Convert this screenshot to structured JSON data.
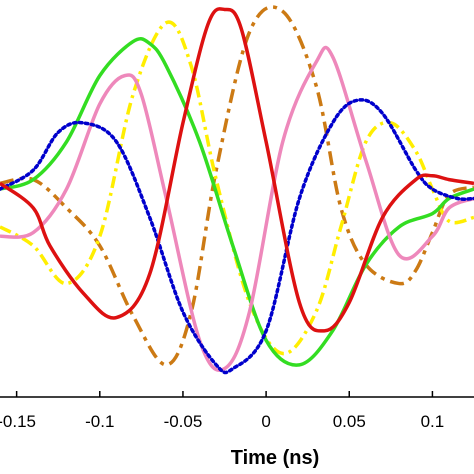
{
  "chart_data": {
    "type": "line",
    "title": "",
    "xlabel": "Time (ns)",
    "ylabel": "",
    "xlim": [
      -0.16,
      0.125
    ],
    "ylim": [
      -1.05,
      1.05
    ],
    "x_ticks": [
      -0.15,
      -0.1,
      -0.05,
      0,
      0.05,
      0.1
    ],
    "x_tick_labels": [
      "-0.15",
      "-0.1",
      "-0.05",
      "0",
      "0.05",
      "0.1"
    ],
    "grid": false,
    "legend": "none",
    "series": [
      {
        "style": "dashed",
        "color": "#cc7a14",
        "x": [
          -0.16,
          -0.14,
          -0.12,
          -0.1,
          -0.08,
          -0.06,
          -0.045,
          -0.03,
          -0.01,
          0.01,
          0.03,
          0.045,
          0.06,
          0.08,
          0.09,
          0.1,
          0.11,
          0.125
        ],
        "y": [
          0.08,
          0.1,
          -0.05,
          -0.25,
          -0.62,
          -0.88,
          -0.6,
          0.15,
          0.88,
          0.99,
          0.6,
          -0.05,
          -0.35,
          -0.45,
          -0.38,
          -0.18,
          0.02,
          0.06
        ]
      },
      {
        "style": "dashdot",
        "color": "#ffee00",
        "x": [
          -0.16,
          -0.14,
          -0.12,
          -0.1,
          -0.08,
          -0.06,
          -0.045,
          -0.03,
          -0.01,
          0.01,
          0.03,
          0.045,
          0.06,
          0.075,
          0.09,
          0.1,
          0.11,
          0.125
        ],
        "y": [
          -0.15,
          -0.25,
          -0.45,
          -0.2,
          0.55,
          0.93,
          0.7,
          0.1,
          -0.55,
          -0.82,
          -0.6,
          -0.15,
          0.3,
          0.4,
          0.25,
          0.05,
          -0.12,
          -0.1
        ]
      },
      {
        "style": "solid",
        "color": "#33dd22",
        "x": [
          -0.16,
          -0.14,
          -0.12,
          -0.1,
          -0.08,
          -0.07,
          -0.06,
          -0.04,
          -0.02,
          0,
          0.02,
          0.04,
          0.06,
          0.08,
          0.1,
          0.11,
          0.125
        ],
        "y": [
          0.05,
          0.1,
          0.3,
          0.65,
          0.83,
          0.82,
          0.7,
          0.3,
          -0.25,
          -0.75,
          -0.88,
          -0.7,
          -0.35,
          -0.15,
          -0.08,
          0.0,
          0.05
        ]
      },
      {
        "style": "solid",
        "color": "#ee88bb",
        "x": [
          -0.16,
          -0.14,
          -0.12,
          -0.1,
          -0.085,
          -0.075,
          -0.06,
          -0.04,
          -0.025,
          -0.01,
          0.01,
          0.03,
          0.04,
          0.06,
          0.08,
          0.1,
          0.11,
          0.125
        ],
        "y": [
          -0.2,
          -0.18,
          0.05,
          0.5,
          0.65,
          0.55,
          0.0,
          -0.75,
          -0.9,
          -0.6,
          0.3,
          0.72,
          0.75,
          0.2,
          -0.3,
          -0.2,
          -0.05,
          0.0
        ]
      },
      {
        "style": "dotted",
        "color": "#0000cc",
        "x": [
          -0.16,
          -0.14,
          -0.125,
          -0.11,
          -0.09,
          -0.07,
          -0.05,
          -0.03,
          -0.02,
          0,
          0.02,
          0.04,
          0.055,
          0.07,
          0.09,
          0.1,
          0.115,
          0.125
        ],
        "y": [
          0.05,
          0.15,
          0.35,
          0.4,
          0.3,
          -0.1,
          -0.6,
          -0.88,
          -0.9,
          -0.7,
          0.0,
          0.4,
          0.52,
          0.45,
          0.15,
          0.05,
          0.0,
          0.0
        ]
      },
      {
        "style": "solid",
        "color": "#dd1111",
        "x": [
          -0.16,
          -0.14,
          -0.13,
          -0.11,
          -0.09,
          -0.07,
          -0.05,
          -0.035,
          -0.025,
          -0.015,
          0,
          0.02,
          0.035,
          0.05,
          0.07,
          0.09,
          0.1,
          0.11,
          0.125
        ],
        "y": [
          0.08,
          -0.05,
          -0.25,
          -0.5,
          -0.63,
          -0.4,
          0.4,
          0.92,
          1.0,
          0.9,
          0.3,
          -0.55,
          -0.7,
          -0.55,
          -0.1,
          0.1,
          0.12,
          0.1,
          0.08
        ]
      }
    ]
  }
}
